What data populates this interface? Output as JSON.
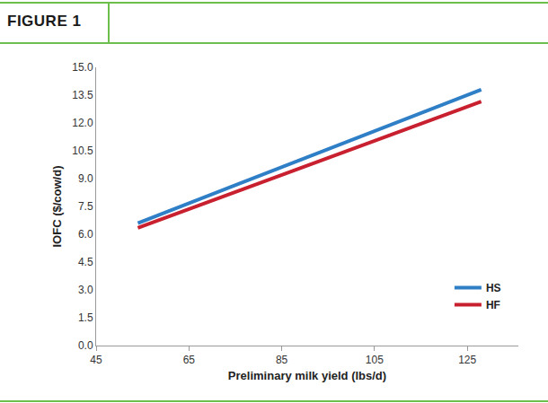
{
  "chart_data": {
    "type": "line",
    "title": "FIGURE 1",
    "x_label": "Preliminary milk yield (lbs/d)",
    "y_label": "IOFC ($/cow/d)",
    "x": [
      54,
      128
    ],
    "series": [
      {
        "name": "HS",
        "color": "#2f7fc7",
        "values": [
          6.6,
          13.8
        ]
      },
      {
        "name": "HF",
        "color": "#c8202f",
        "values": [
          6.35,
          13.15
        ]
      }
    ],
    "xlim": [
      45,
      136
    ],
    "xticks": [
      45,
      65,
      85,
      105,
      125
    ],
    "ylim": [
      0,
      15
    ],
    "yticks": [
      {
        "value": 0,
        "label": "0.0"
      },
      1.5,
      {
        "value": 3,
        "label": "3.0"
      },
      4.5,
      {
        "value": 6,
        "label": "6.0"
      },
      7.5,
      {
        "value": 9,
        "label": "9.0"
      },
      10.5,
      {
        "value": 12,
        "label": "12.0"
      },
      13.5,
      {
        "value": 15,
        "label": "15.0"
      }
    ],
    "grid": false,
    "legend": "lower right"
  }
}
